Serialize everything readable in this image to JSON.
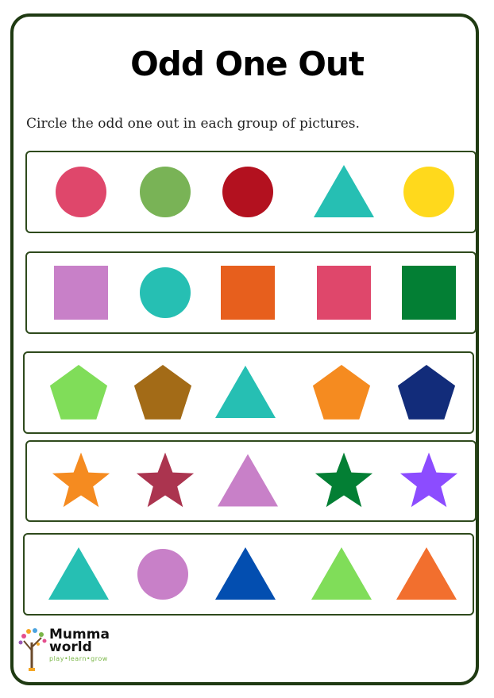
{
  "title": "Odd One Out",
  "instruction": "Circle the odd one out in each group of pictures.",
  "brand": {
    "name_line1": "Mumma",
    "name_line2": "world",
    "tagline": "play•learn•grow"
  },
  "rows": [
    {
      "shapes": [
        {
          "shape": "circle",
          "color": "#df476b"
        },
        {
          "shape": "circle",
          "color": "#79b356"
        },
        {
          "shape": "circle",
          "color": "#b3111f"
        },
        {
          "shape": "triangle",
          "color": "#26bfb3"
        },
        {
          "shape": "circle",
          "color": "#ffd91c"
        }
      ]
    },
    {
      "shapes": [
        {
          "shape": "square",
          "color": "#c880c8"
        },
        {
          "shape": "circle",
          "color": "#26bfb3"
        },
        {
          "shape": "square",
          "color": "#e75f1d"
        },
        {
          "shape": "square",
          "color": "#df476b"
        },
        {
          "shape": "square",
          "color": "#037f34"
        }
      ]
    },
    {
      "shapes": [
        {
          "shape": "pentagon",
          "color": "#80dd59"
        },
        {
          "shape": "pentagon",
          "color": "#a36b17"
        },
        {
          "shape": "triangle",
          "color": "#26bfb3"
        },
        {
          "shape": "pentagon",
          "color": "#f58b20"
        },
        {
          "shape": "pentagon",
          "color": "#122c7a"
        }
      ]
    },
    {
      "shapes": [
        {
          "shape": "star",
          "color": "#f58b20"
        },
        {
          "shape": "star",
          "color": "#ab344f"
        },
        {
          "shape": "triangle",
          "color": "#c880c8"
        },
        {
          "shape": "star",
          "color": "#037f34"
        },
        {
          "shape": "star",
          "color": "#8c4cff"
        }
      ]
    },
    {
      "shapes": [
        {
          "shape": "triangle",
          "color": "#26bfb3"
        },
        {
          "shape": "circle",
          "color": "#c880c8"
        },
        {
          "shape": "triangle",
          "color": "#034eb0"
        },
        {
          "shape": "triangle",
          "color": "#80dd59"
        },
        {
          "shape": "triangle",
          "color": "#f26f2e"
        }
      ]
    }
  ]
}
